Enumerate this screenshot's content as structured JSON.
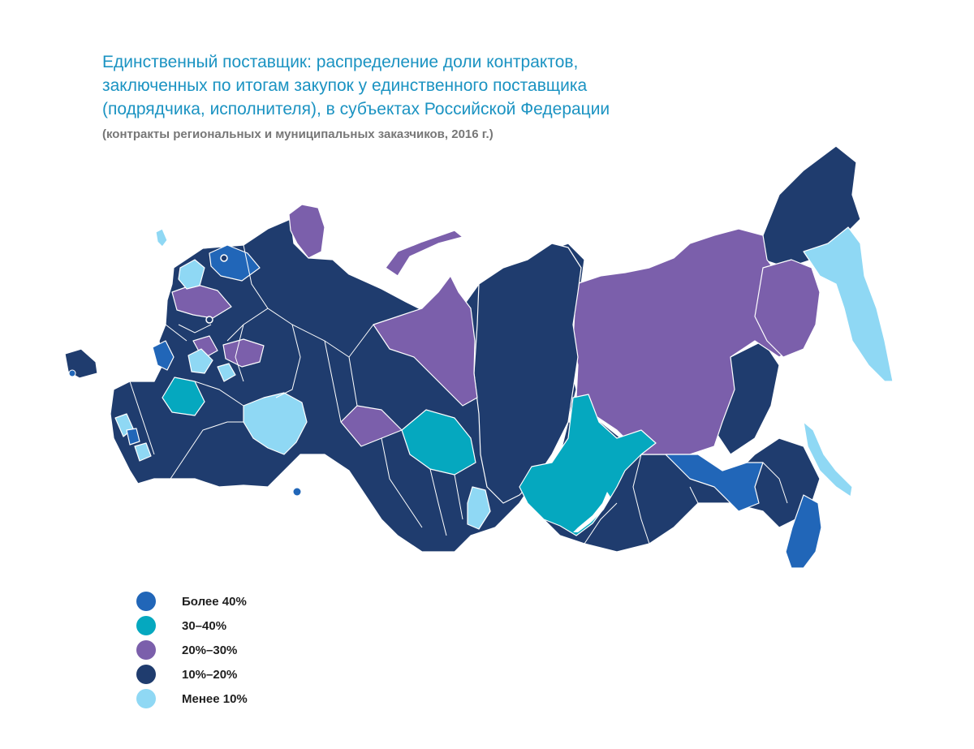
{
  "title_lines": [
    "Единственный поставщик: распределение доли контрактов,",
    "заключенных по итогам закупок у единственного поставщика",
    "(подрядчика, исполнителя),  в субъектах Российской Федерации"
  ],
  "subtitle": "(контракты региональных и муниципальных заказчиков, 2016 г.)",
  "colors": {
    "over40": "#2166b8",
    "c30_40": "#05a8bf",
    "c20_30": "#7b5fab",
    "c10_20": "#1f3c6e",
    "under10": "#8fd8f4"
  },
  "legend": [
    {
      "label": "Более 40%",
      "color": "#2166b8"
    },
    {
      "label": "30–40%",
      "color": "#05a8bf"
    },
    {
      "label": "20%–30%",
      "color": "#7b5fab"
    },
    {
      "label": "10%–20%",
      "color": "#1f3c6e"
    },
    {
      "label": "Менее 10%",
      "color": "#8fd8f4"
    }
  ]
}
